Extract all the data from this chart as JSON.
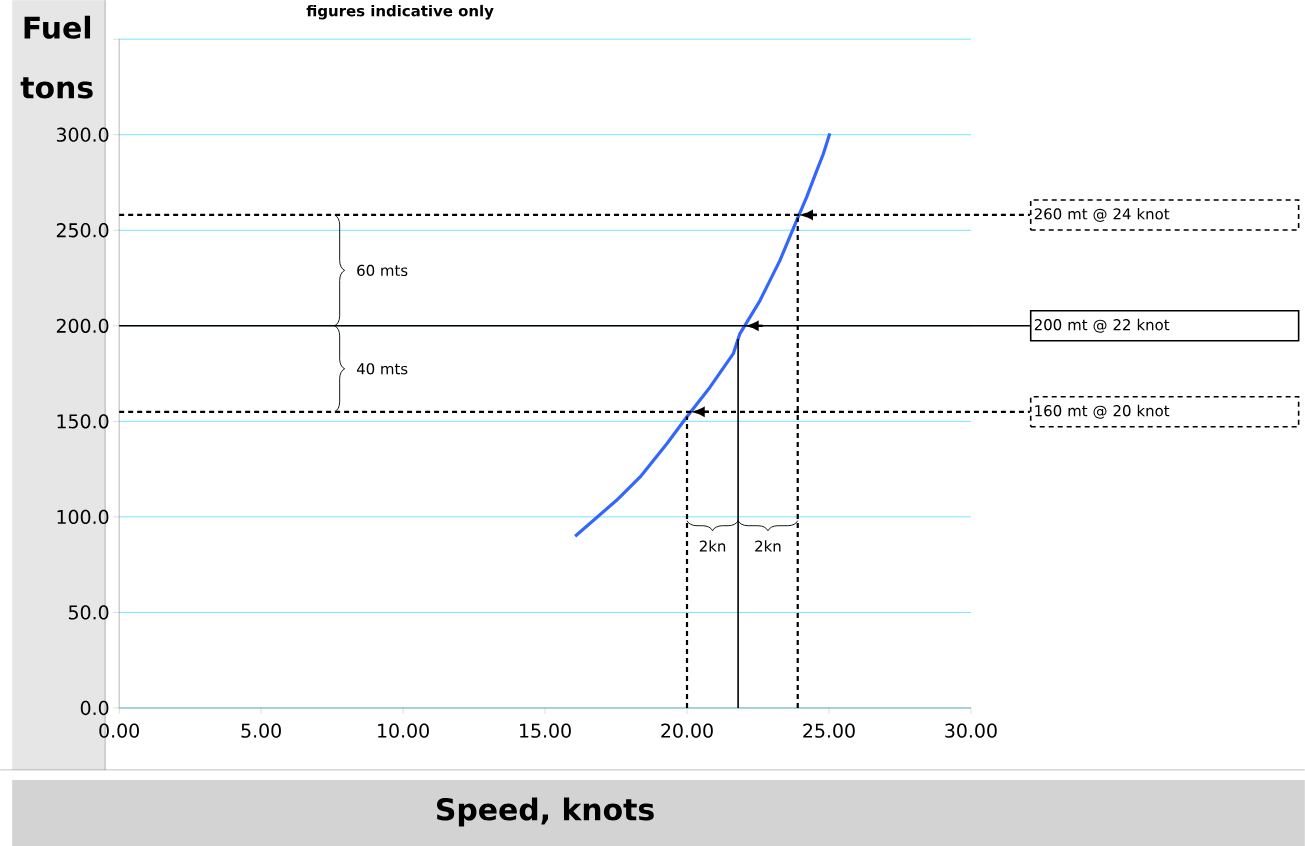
{
  "chart_data": {
    "type": "line",
    "title": "figures indicative only",
    "xlabel": "Speed, knots",
    "ylabel": "Fuel tons",
    "x": [
      16.06,
      17.52,
      18.35,
      19.29,
      19.99,
      20.81,
      21.63,
      21.86,
      22.57,
      23.27,
      23.86,
      24.21,
      24.57,
      24.8,
      25.03
    ],
    "series": [
      {
        "color": "#3366ff",
        "values": [
          89.9,
          108.7,
          120.9,
          138.3,
          152.3,
          167.9,
          185.4,
          195.8,
          213.2,
          234.1,
          255.1,
          267.2,
          281.2,
          289.9,
          300.7
        ]
      }
    ],
    "xlim": [
      0,
      30
    ],
    "ylim": [
      0,
      350
    ],
    "xticks": [
      {
        "value": 0,
        "label": "0.00"
      },
      {
        "value": 5,
        "label": "5.00"
      },
      {
        "value": 10,
        "label": "10.00"
      },
      {
        "value": 15,
        "label": "15.00"
      },
      {
        "value": 20,
        "label": "20.00"
      },
      {
        "value": 25,
        "label": "25.00"
      },
      {
        "value": 30,
        "label": "30.00"
      }
    ],
    "yticks": [
      {
        "value": 0,
        "label": "0.0"
      },
      {
        "value": 50,
        "label": "50.0"
      },
      {
        "value": 100,
        "label": "100.0"
      },
      {
        "value": 150,
        "label": "150.0"
      },
      {
        "value": 200,
        "label": "200.0"
      },
      {
        "value": 250,
        "label": "250.0"
      },
      {
        "value": 300,
        "label": "300.0"
      },
      {
        "value": 350,
        "label": null
      }
    ],
    "grid": "y",
    "marker": "none",
    "line_style": "solid",
    "ref_lines": [
      {
        "axis": "y",
        "value": 258,
        "label": "260 mt @ 24 knot",
        "line_style": "dashed",
        "color": "#000000"
      },
      {
        "axis": "y",
        "value": 200,
        "label": "200 mt @ 22 knot",
        "line_style": "solid",
        "color": "#000000"
      },
      {
        "axis": "y",
        "value": 155,
        "label": "160 mt @ 20 knot",
        "line_style": "dashed",
        "color": "#000000"
      },
      {
        "axis": "x",
        "value": 20.0,
        "line_style": "dashed",
        "color": "#000000"
      },
      {
        "axis": "x",
        "value": 21.8,
        "line_style": "solid",
        "color": "#000000"
      },
      {
        "axis": "x",
        "value": 23.9,
        "line_style": "dashed",
        "color": "#000000"
      }
    ],
    "annotations": [
      "60 mts",
      "40 mts",
      "2kn",
      "2kn"
    ]
  }
}
